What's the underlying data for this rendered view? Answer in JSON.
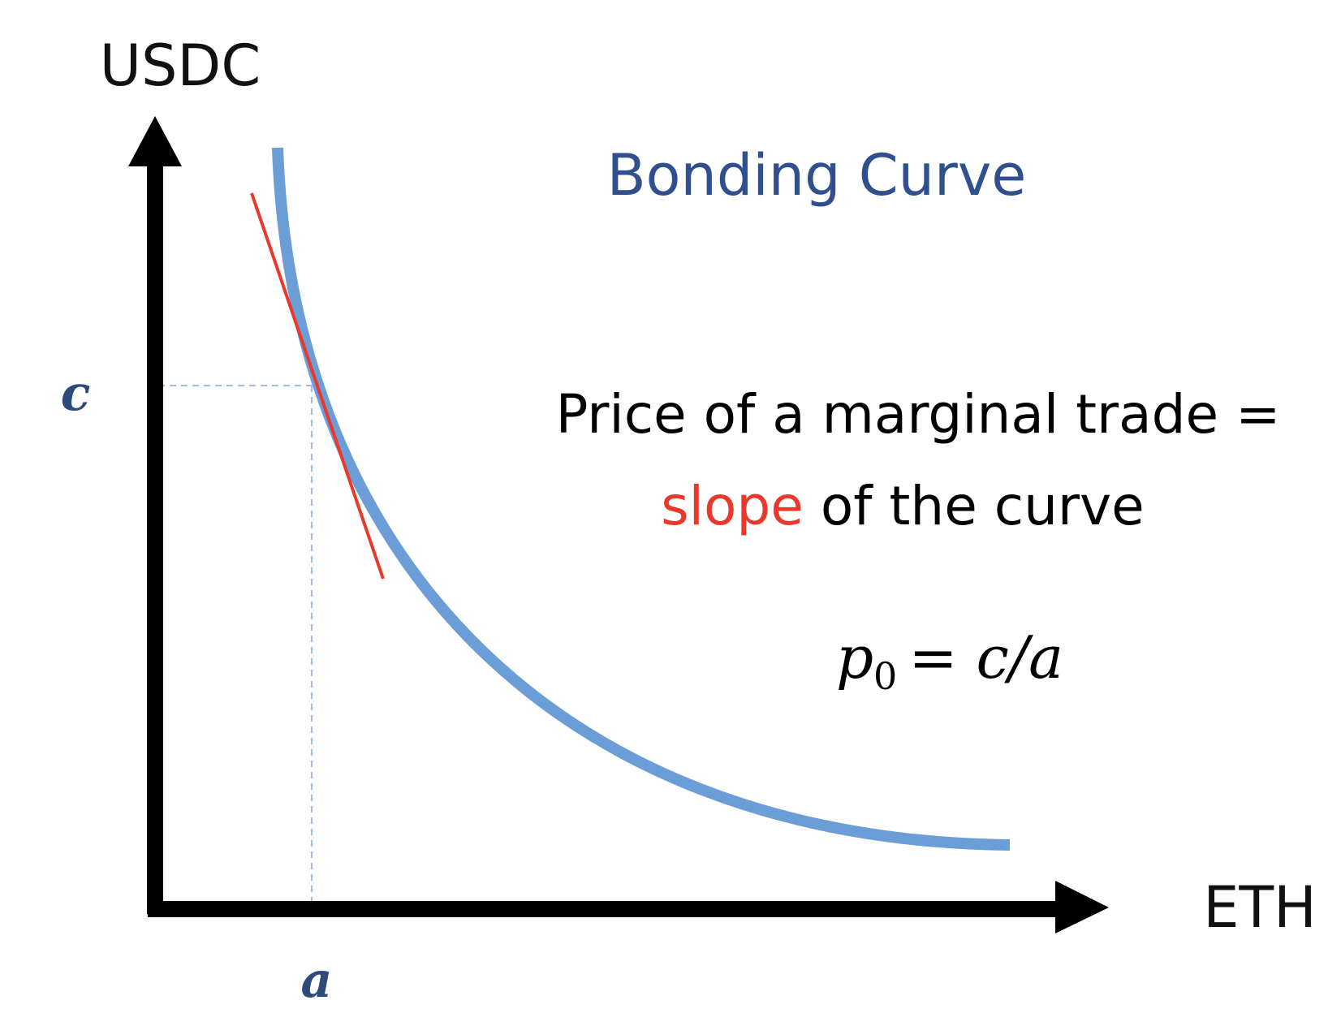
{
  "axes": {
    "y_label": "USDC",
    "x_label": "ETH",
    "y_point": "c",
    "x_point": "a"
  },
  "title": "Bonding Curve",
  "statement": {
    "line1": "Price of a marginal trade =",
    "highlight": "slope",
    "line2_rest": "of the curve"
  },
  "formula": {
    "base": "p",
    "subscript": "0",
    "rest": "= c/a"
  }
}
